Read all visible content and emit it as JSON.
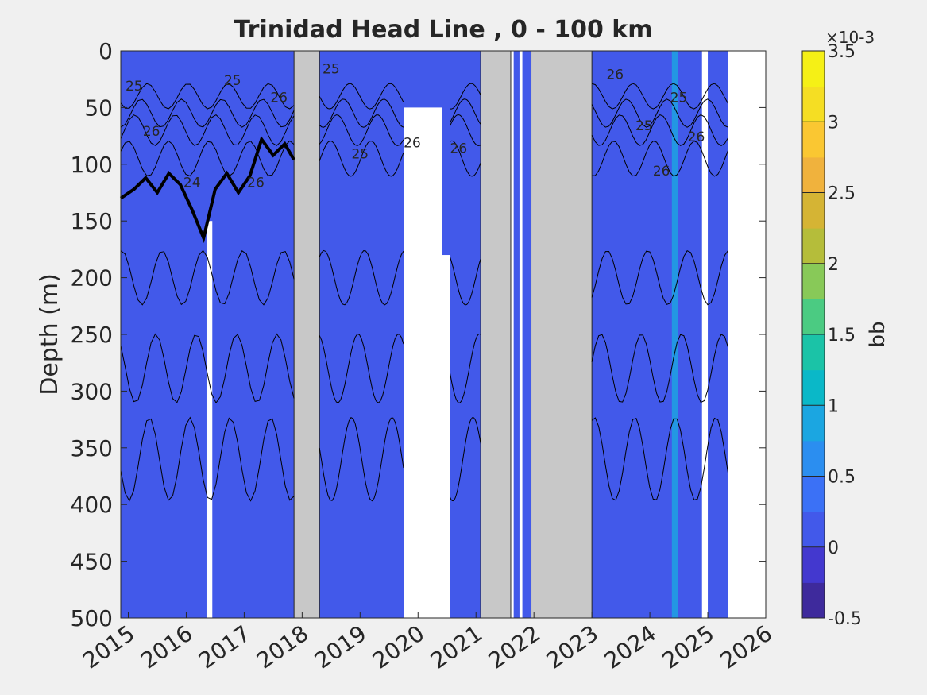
{
  "chart_data": {
    "type": "heatmap",
    "title": "Trinidad Head Line , 0 - 100 km",
    "xlabel": "",
    "ylabel": "Depth (m)",
    "xlim": [
      2014.87,
      2026.0
    ],
    "ylim": [
      0,
      500
    ],
    "y_reversed": true,
    "x_ticks": [
      "2015",
      "2016",
      "2017",
      "2018",
      "2019",
      "2020",
      "2021",
      "2022",
      "2023",
      "2024",
      "2025",
      "2026"
    ],
    "y_ticks": [
      "0",
      "50",
      "100",
      "150",
      "200",
      "250",
      "300",
      "350",
      "400",
      "450",
      "500"
    ],
    "colorbar": {
      "label": "bb",
      "exponent": "×10-3",
      "min": -0.5,
      "max": 3.5,
      "ticks": [
        "-0.5",
        "0",
        "0.5",
        "1",
        "1.5",
        "2",
        "2.5",
        "3",
        "3.5"
      ],
      "colors": [
        "#3e2a9c",
        "#4338cf",
        "#4259ea",
        "#3b71f6",
        "#2b8ef0",
        "#1ba6e1",
        "#0ab8c8",
        "#1bc3a7",
        "#4bcb82",
        "#88c958",
        "#b5bd3a",
        "#d5b434",
        "#f0b23d",
        "#fac732",
        "#f5de23",
        "#f5f016"
      ]
    },
    "background_value": 0.2,
    "no_data_gray_periods": [
      [
        2017.86,
        2018.3
      ],
      [
        2021.08,
        2021.6
      ],
      [
        2021.95,
        2023.0
      ]
    ],
    "contour_labels": [
      "25",
      "26",
      "24",
      "25",
      "26",
      "25",
      "25",
      "26",
      "26",
      "26",
      "25",
      "26",
      "25",
      "26",
      "26"
    ],
    "sigma_theta_26_depth": {
      "x": [
        2014.87,
        2015.1,
        2015.3,
        2015.5,
        2015.7,
        2015.9,
        2016.1,
        2016.3,
        2016.5,
        2016.7,
        2016.9,
        2017.1,
        2017.3,
        2017.5,
        2017.7,
        2017.86
      ],
      "y": [
        130,
        122,
        112,
        125,
        108,
        118,
        140,
        165,
        122,
        108,
        125,
        110,
        78,
        92,
        82,
        96
      ]
    }
  }
}
